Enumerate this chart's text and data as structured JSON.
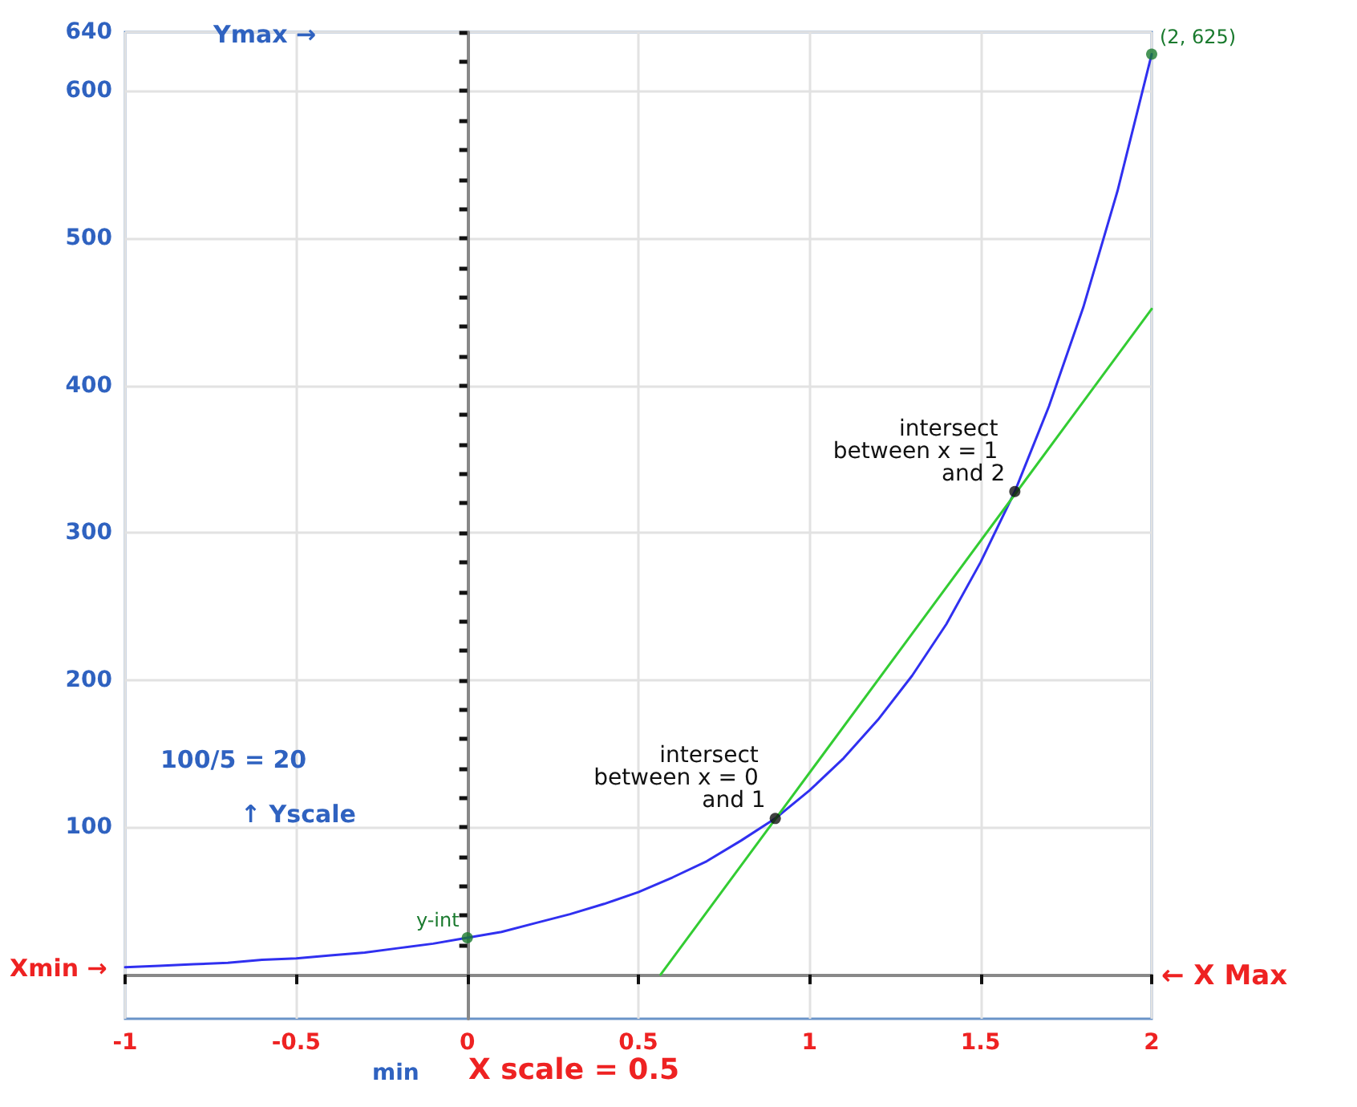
{
  "chart_data": {
    "type": "line",
    "series": [
      {
        "color": "#3030f0",
        "x": [
          -1,
          -0.9,
          -0.8,
          -0.7,
          -0.6,
          -0.5,
          -0.4,
          -0.3,
          -0.2,
          -0.1,
          0,
          0.1,
          0.2,
          0.3,
          0.4,
          0.5,
          0.6,
          0.7,
          0.8,
          0.9,
          1,
          1.1,
          1.2,
          1.3,
          1.4,
          1.5,
          1.6,
          1.7,
          1.8,
          1.9,
          2
        ],
        "values": [
          5,
          6,
          7,
          8,
          10,
          11,
          13,
          15,
          18,
          21,
          25,
          29,
          35,
          41,
          48,
          56,
          66,
          77,
          91,
          106,
          125,
          147,
          173,
          203,
          238,
          280,
          328,
          386,
          453,
          532,
          625
        ]
      },
      {
        "color": "#33cc33",
        "x": [
          0.565,
          2
        ],
        "values": [
          0,
          452
        ]
      },
      {
        "type": "scatter",
        "marker": "circle",
        "x": [
          0,
          0.9,
          1.6,
          2
        ],
        "values": [
          25,
          106,
          328,
          625
        ],
        "colors": [
          "#1a7a2e",
          "#111111",
          "#111111",
          "#1a7a2e"
        ]
      }
    ],
    "xlim": [
      -1,
      2
    ],
    "ylim": [
      -30,
      640
    ],
    "xticks": [
      -1,
      -0.5,
      0,
      0.5,
      1,
      1.5,
      2
    ],
    "yticks": [
      {
        "value": 20,
        "label": null
      },
      {
        "value": 40,
        "label": null
      },
      {
        "value": 60,
        "label": null
      },
      {
        "value": 80,
        "label": null
      },
      100,
      {
        "value": 120,
        "label": null
      },
      {
        "value": 140,
        "label": null
      },
      {
        "value": 160,
        "label": null
      },
      {
        "value": 180,
        "label": null
      },
      200,
      {
        "value": 220,
        "label": null
      },
      {
        "value": 240,
        "label": null
      },
      {
        "value": 260,
        "label": null
      },
      {
        "value": 280,
        "label": null
      },
      300,
      {
        "value": 320,
        "label": null
      },
      {
        "value": 340,
        "label": null
      },
      {
        "value": 360,
        "label": null
      },
      {
        "value": 380,
        "label": null
      },
      400,
      {
        "value": 420,
        "label": null
      },
      {
        "value": 440,
        "label": null
      },
      {
        "value": 460,
        "label": null
      },
      {
        "value": 480,
        "label": null
      },
      500,
      {
        "value": 520,
        "label": null
      },
      {
        "value": 540,
        "label": null
      },
      {
        "value": 560,
        "label": null
      },
      {
        "value": 580,
        "label": null
      },
      600,
      {
        "value": 620,
        "label": null
      },
      640
    ],
    "grid": true,
    "annotations": [
      "Ymax →",
      "Xmin →",
      "← X Max",
      "min",
      "X scale = 0.5",
      "100/5 = 20",
      "↑ Yscale",
      {
        "text": "y-int",
        "x": 0,
        "y": 25
      },
      {
        "text": "(2, 625)",
        "x": 2,
        "y": 625
      },
      {
        "text": "intersect between x = 0 and 1",
        "x": 0.9,
        "y": 106
      },
      {
        "text": "intersect between x = 1 and 2",
        "x": 1.6,
        "y": 328
      }
    ]
  }
}
